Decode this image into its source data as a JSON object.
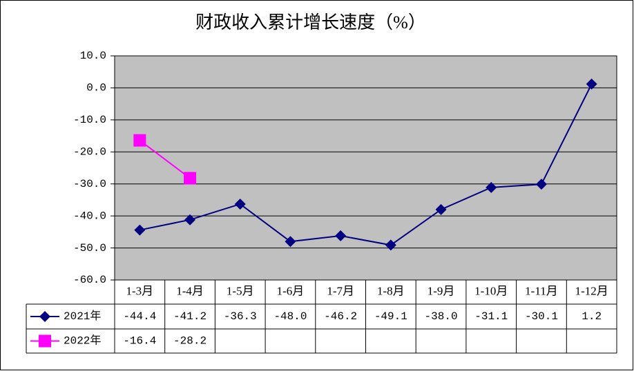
{
  "chart_data": {
    "type": "line",
    "title": "财政收入累计增长速度（%）",
    "categories": [
      "1-3月",
      "1-4月",
      "1-5月",
      "1-6月",
      "1-7月",
      "1-8月",
      "1-9月",
      "1-10月",
      "1-11月",
      "1-12月"
    ],
    "series": [
      {
        "name": "2021年",
        "color": "#000080",
        "marker": "diamond",
        "values": [
          -44.4,
          -41.2,
          -36.3,
          -48.0,
          -46.2,
          -49.1,
          -38.0,
          -31.1,
          -30.1,
          1.2
        ],
        "value_labels": [
          "-44.4",
          "-41.2",
          "-36.3",
          "-48.0",
          "-46.2",
          "-49.1",
          "-38.0",
          "-31.1",
          "-30.1",
          "1.2"
        ]
      },
      {
        "name": "2022年",
        "color": "#ff00ff",
        "marker": "square",
        "values": [
          -16.4,
          -28.2,
          null,
          null,
          null,
          null,
          null,
          null,
          null,
          null
        ],
        "value_labels": [
          "-16.4",
          "-28.2",
          null,
          null,
          null,
          null,
          null,
          null,
          null,
          null
        ]
      }
    ],
    "ylim": [
      -60,
      10
    ],
    "yticks": [
      {
        "value": 10,
        "label": "10.0"
      },
      {
        "value": 0,
        "label": "0.0"
      },
      {
        "value": -10,
        "label": "-10.0"
      },
      {
        "value": -20,
        "label": "-20.0"
      },
      {
        "value": -30,
        "label": "-30.0"
      },
      {
        "value": -40,
        "label": "-40.0"
      },
      {
        "value": -50,
        "label": "-50.0"
      },
      {
        "value": -60,
        "label": "-60.0"
      }
    ],
    "grid": true,
    "plot_background": "#c0c0c0",
    "data_table": true
  }
}
